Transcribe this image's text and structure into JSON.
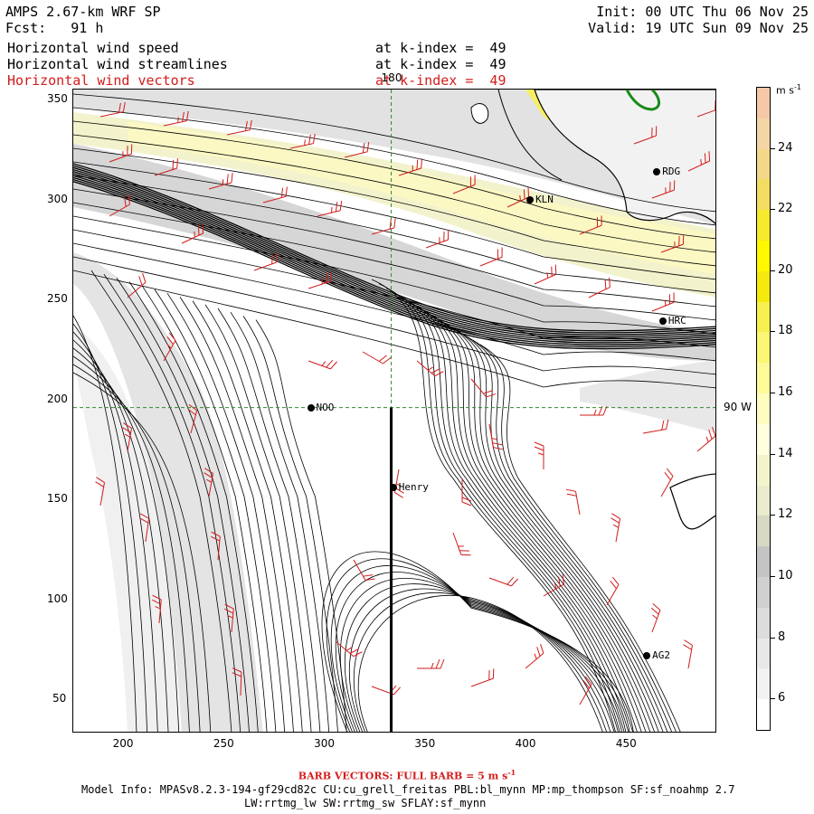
{
  "header": {
    "model": "AMPS 2.67-km WRF SP",
    "fcst": "Fcst:   91 h",
    "init": "Init: 00 UTC Thu 06 Nov 25",
    "valid": "Valid: 19 UTC Sun 09 Nov 25"
  },
  "fields": [
    {
      "name": "Horizontal wind speed",
      "level": "at k-index =  49",
      "color": "#000000"
    },
    {
      "name": "Horizontal wind streamlines",
      "level": "at k-index =  49",
      "color": "#000000"
    },
    {
      "name": "Horizontal wind vectors",
      "level": "at k-index =  49",
      "color": "#d21c1c"
    }
  ],
  "axes": {
    "x_ticks": [
      "200",
      "250",
      "300",
      "350",
      "400",
      "450"
    ],
    "y_ticks": [
      "50",
      "100",
      "150",
      "200",
      "250",
      "300",
      "350"
    ],
    "xlim": [
      175,
      495
    ],
    "ylim": [
      33,
      355
    ],
    "meridian_label": "180",
    "parallel_label": "90 W",
    "meridian_x": 333,
    "parallel_y": 196
  },
  "stations": [
    {
      "name": "RDG",
      "x": 465,
      "y": 314
    },
    {
      "name": "KLN",
      "x": 402,
      "y": 300
    },
    {
      "name": "HRC",
      "x": 468,
      "y": 239
    },
    {
      "name": "NOO",
      "x": 293,
      "y": 196
    },
    {
      "name": "Henry",
      "x": 334,
      "y": 156
    },
    {
      "name": "AG2",
      "x": 460,
      "y": 72
    }
  ],
  "colorbar": {
    "unit": "m s",
    "unit_exp": "-1",
    "ticks": [
      "6",
      "8",
      "10",
      "12",
      "14",
      "16",
      "18",
      "20",
      "22",
      "24"
    ],
    "bins": [
      {
        "from": 5,
        "to": 6,
        "color": "#ffffff"
      },
      {
        "from": 6,
        "to": 7,
        "color": "#f2f2f2"
      },
      {
        "from": 7,
        "to": 8,
        "color": "#e8e8e8"
      },
      {
        "from": 8,
        "to": 9,
        "color": "#dcdcdc"
      },
      {
        "from": 9,
        "to": 10,
        "color": "#d0d0d0"
      },
      {
        "from": 10,
        "to": 11,
        "color": "#c4c4c4"
      },
      {
        "from": 11,
        "to": 12,
        "color": "#d6d8c4"
      },
      {
        "from": 12,
        "to": 13,
        "color": "#e9ebcc"
      },
      {
        "from": 13,
        "to": 14,
        "color": "#f4f4cc"
      },
      {
        "from": 14,
        "to": 15,
        "color": "#ffffe0"
      },
      {
        "from": 15,
        "to": 16,
        "color": "#fdfdc0"
      },
      {
        "from": 16,
        "to": 17,
        "color": "#fdfa9a"
      },
      {
        "from": 17,
        "to": 18,
        "color": "#fbf674"
      },
      {
        "from": 18,
        "to": 19,
        "color": "#f8f050"
      },
      {
        "from": 19,
        "to": 20,
        "color": "#f5ea0e"
      },
      {
        "from": 20,
        "to": 21,
        "color": "#fef900"
      },
      {
        "from": 21,
        "to": 22,
        "color": "#f6ea2c"
      },
      {
        "from": 22,
        "to": 23,
        "color": "#f2dc62"
      },
      {
        "from": 23,
        "to": 24,
        "color": "#f2d888"
      },
      {
        "from": 24,
        "to": 25,
        "color": "#f4d6a6"
      },
      {
        "from": 25,
        "to": 26,
        "color": "#f7c8a8"
      }
    ]
  },
  "footer": {
    "barb": "BARB VECTORS:  FULL BARB = 5 m s",
    "barb_exp": "-1",
    "model_info": "Model Info: MPASv8.2.3-194-gf29cd82c CU:cu_grell_freitas PBL:bl_mynn MP:mp_thompson SF:sf_noahmp 2.7",
    "schemes": "LW:rrtmg_lw SW:rrtmg_sw SFLAY:sf_mynn"
  },
  "colors": {
    "vector": "#d21c1c",
    "grid_line": "#2e8b2e",
    "coast": "#000000",
    "land": "#f2f2f2",
    "land_outline": "#1a8a1a"
  }
}
